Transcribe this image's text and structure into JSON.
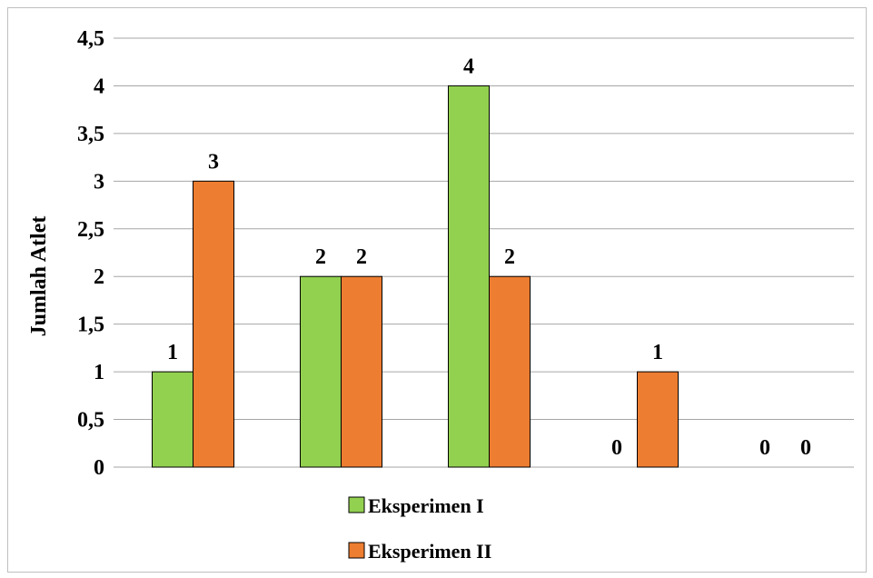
{
  "chart_data": {
    "type": "bar",
    "categories": [
      "",
      "",
      "",
      "",
      ""
    ],
    "series": [
      {
        "name": "Eksperimen I",
        "color": "#92d050",
        "values": [
          1,
          2,
          4,
          0,
          0
        ]
      },
      {
        "name": "Eksperimen II",
        "color": "#ed7d31",
        "values": [
          3,
          2,
          2,
          1,
          0
        ]
      }
    ],
    "ylabel": "Jumlah Atlet",
    "xlabel": "",
    "ylim": [
      0,
      4.5
    ],
    "yticks": [
      "0",
      "0,5",
      "1",
      "1,5",
      "2",
      "2,5",
      "3",
      "3,5",
      "4",
      "4,5"
    ],
    "grid": true,
    "legend_position": "bottom"
  }
}
